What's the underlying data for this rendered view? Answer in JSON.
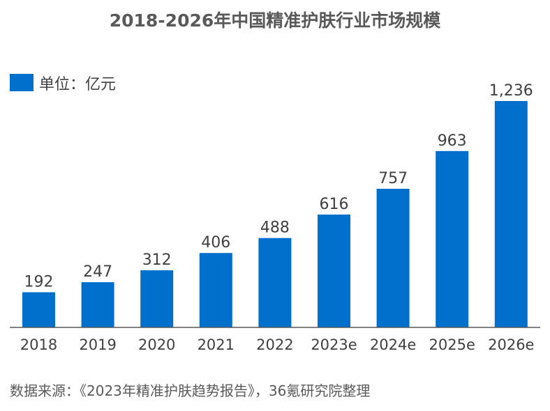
{
  "colors": {
    "bar": "#0070CC",
    "axis": "#595959"
  },
  "chart_data": {
    "type": "bar",
    "title": "2018-2026年中国精准护肤行业市场规模",
    "legend": {
      "label": "单位：亿元",
      "position": "top-left"
    },
    "categories": [
      "2018",
      "2019",
      "2020",
      "2021",
      "2022",
      "2023e",
      "2024e",
      "2025e",
      "2026e"
    ],
    "values": [
      192,
      247,
      312,
      406,
      488,
      616,
      757,
      963,
      1236
    ],
    "value_labels": [
      "192",
      "247",
      "312",
      "406",
      "488",
      "616",
      "757",
      "963",
      "1,236"
    ],
    "xlabel": "",
    "ylabel": "",
    "ylim": [
      0,
      1300
    ],
    "grid": false
  },
  "source": "数据来源：《2023年精准护肤趋势报告》，36氪研究院整理"
}
